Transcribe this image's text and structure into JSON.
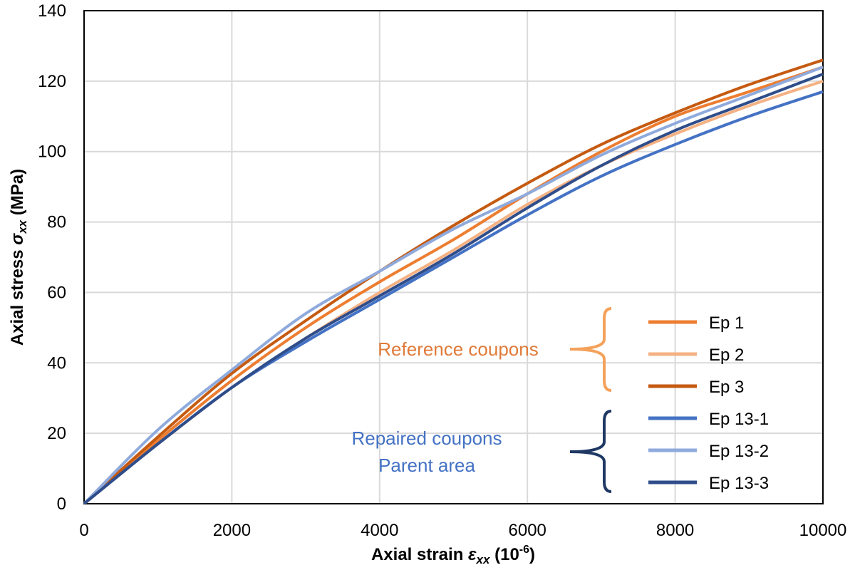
{
  "chart_data": {
    "type": "line",
    "xlabel_prefix": "Axial strain ",
    "xlabel_symbol": "ε",
    "xlabel_sub": "xx",
    "xlabel_unit_pre": " (10",
    "xlabel_unit_sup": "-6",
    "xlabel_unit_post": ")",
    "ylabel_prefix": "Axial stress ",
    "ylabel_symbol": "σ",
    "ylabel_sub": "xx",
    "ylabel_unit": " (MPa)",
    "xlim": [
      0,
      10000
    ],
    "ylim": [
      0,
      140
    ],
    "xticks": [
      0,
      2000,
      4000,
      6000,
      8000,
      10000
    ],
    "yticks": [
      0,
      20,
      40,
      60,
      80,
      100,
      120,
      140
    ],
    "grid": true,
    "legend_position": "bottom-right",
    "groups": [
      {
        "lines": [
          "Reference coupons"
        ],
        "color": "#e07b39"
      },
      {
        "lines": [
          "Repaired coupons",
          "Parent area"
        ],
        "color": "#4472c4"
      }
    ],
    "series": [
      {
        "name": "Ep 1",
        "color": "#ed7d31",
        "x": [
          0,
          1000,
          2000,
          3000,
          4000,
          5000,
          6000,
          7000,
          8000,
          9000,
          10000
        ],
        "y": [
          0,
          18,
          35,
          50,
          63,
          75,
          88,
          100,
          110,
          117,
          124
        ]
      },
      {
        "name": "Ep 2",
        "color": "#f4b183",
        "x": [
          0,
          1000,
          2000,
          3000,
          4000,
          5000,
          6000,
          7000,
          8000,
          9000,
          10000
        ],
        "y": [
          0,
          17,
          33,
          47,
          60,
          72,
          85,
          96,
          105,
          113,
          120
        ]
      },
      {
        "name": "Ep 3",
        "color": "#c55a11",
        "x": [
          0,
          1000,
          2000,
          3000,
          4000,
          5000,
          6000,
          7000,
          8000,
          9000,
          10000
        ],
        "y": [
          0,
          19,
          37,
          52,
          66,
          79,
          91,
          102,
          111,
          119,
          126
        ]
      },
      {
        "name": "Ep 13-1",
        "color": "#4472c4",
        "x": [
          0,
          1000,
          2000,
          3000,
          4000,
          5000,
          6000,
          7000,
          8000,
          9000,
          10000
        ],
        "y": [
          0,
          17,
          33,
          46,
          58,
          70,
          82,
          93,
          102,
          110,
          117
        ]
      },
      {
        "name": "Ep 13-2",
        "color": "#8faadc",
        "x": [
          0,
          1000,
          2000,
          3000,
          4000,
          5000,
          6000,
          7000,
          8000,
          9000,
          10000
        ],
        "y": [
          0,
          21,
          38,
          54,
          66,
          78,
          88,
          99,
          108,
          116,
          124
        ]
      },
      {
        "name": "Ep 13-3",
        "color": "#2f4d8a",
        "x": [
          0,
          1000,
          2000,
          3000,
          4000,
          5000,
          6000,
          7000,
          8000,
          9000,
          10000
        ],
        "y": [
          0,
          17,
          33,
          47,
          59,
          71,
          84,
          96,
          106,
          114,
          122
        ]
      }
    ]
  }
}
